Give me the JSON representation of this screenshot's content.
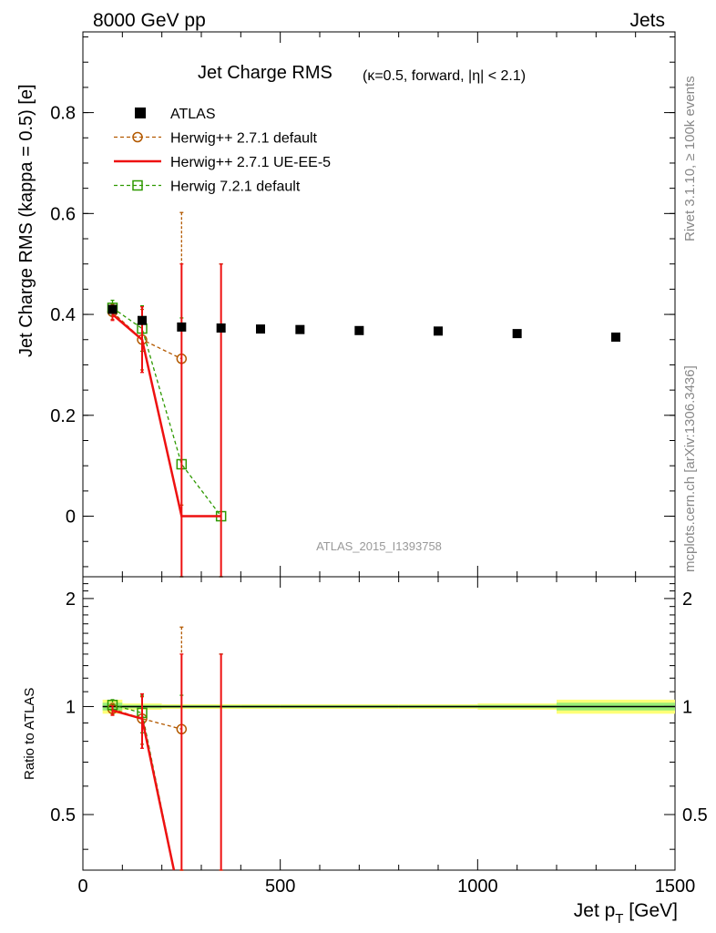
{
  "header": {
    "left": "8000 GeV pp",
    "right": "Jets"
  },
  "side": {
    "rivet": "Rivet 3.1.10, ≥ 100k events",
    "mcplots": "mcplots.cern.ch [arXiv:1306.3436]"
  },
  "chart_data": [
    {
      "type": "scatter",
      "title": "Jet Charge RMS",
      "subtitle": "(κ=0.5, forward, |η| < 2.1)",
      "ylabel": "Jet Charge RMS (kappa = 0.5) [e]",
      "xlabel": "Jet p_T [GeV]",
      "watermark": "ATLAS_2015_I1393758",
      "xlim": [
        0,
        1500
      ],
      "ylim": [
        -0.12,
        0.96
      ],
      "x_ticks": [
        0,
        500,
        1000,
        1500
      ],
      "y_ticks": [
        0,
        0.2,
        0.4,
        0.6,
        0.8
      ],
      "legend_position": "top-left",
      "series": [
        {
          "name": "ATLAS",
          "style": "filled-square",
          "color": "#000000",
          "x": [
            75,
            150,
            250,
            350,
            450,
            550,
            700,
            900,
            1100,
            1350
          ],
          "y": [
            0.41,
            0.388,
            0.375,
            0.373,
            0.371,
            0.37,
            0.368,
            0.367,
            0.362,
            0.355
          ],
          "yerr": [
            0.005,
            0.004,
            0.004,
            0.004,
            0.004,
            0.004,
            0.004,
            0.004,
            0.005,
            0.006
          ]
        },
        {
          "name": "Herwig++ 2.7.1 default",
          "style": "open-circle-dashed",
          "color": "#b35900",
          "x": [
            75,
            150,
            250
          ],
          "y": [
            0.405,
            0.35,
            0.312
          ],
          "yerr": [
            0.015,
            0.06,
            0.29
          ]
        },
        {
          "name": "Herwig++ 2.7.1 UE-EE-5",
          "style": "solid-line",
          "color": "#ee1111",
          "x": [
            75,
            150,
            250,
            350
          ],
          "y": [
            0.4,
            0.35,
            0.0,
            0.0
          ],
          "yerr": [
            0.012,
            0.065,
            0.5,
            0.5
          ]
        },
        {
          "name": "Herwig 7.2.1 default",
          "style": "open-square-dashed",
          "color": "#2e9900",
          "x": [
            75,
            150,
            250,
            350
          ],
          "y": [
            0.413,
            0.372,
            0.103,
            0.0
          ],
          "yerr": [
            0.015,
            0.045,
            0.29,
            0.5
          ]
        }
      ]
    },
    {
      "type": "line",
      "ylabel": "Ratio to ATLAS",
      "xlim": [
        0,
        1500
      ],
      "ylim": [
        0.35,
        2.3
      ],
      "y_scale": "log",
      "y_ticks": [
        0.5,
        1,
        2
      ],
      "x_ticks": [
        0,
        500,
        1000,
        1500
      ],
      "band": {
        "x_edges": [
          50,
          100,
          200,
          300,
          400,
          500,
          600,
          800,
          1000,
          1200,
          1500
        ],
        "half_width": [
          0.045,
          0.02,
          0.015,
          0.015,
          0.015,
          0.015,
          0.015,
          0.015,
          0.02,
          0.045
        ]
      },
      "series": [
        {
          "name": "Herwig++ 2.7.1 default",
          "x": [
            75,
            150,
            250
          ],
          "y": [
            0.985,
            0.925,
            0.865
          ],
          "yerr": [
            0.035,
            0.14,
            0.8
          ]
        },
        {
          "name": "Herwig++ 2.7.1 UE-EE-5",
          "x": [
            75,
            150,
            250,
            350
          ],
          "y": [
            0.975,
            0.925,
            0.0,
            0.0
          ],
          "yerr": [
            0.03,
            0.16,
            1.4,
            1.4
          ]
        },
        {
          "name": "Herwig 7.2.1 default",
          "x": [
            75,
            150,
            250,
            350
          ],
          "y": [
            1.01,
            0.96,
            0.275,
            0.0
          ],
          "yerr": [
            0.035,
            0.115,
            0.8,
            1.4
          ]
        }
      ]
    }
  ]
}
